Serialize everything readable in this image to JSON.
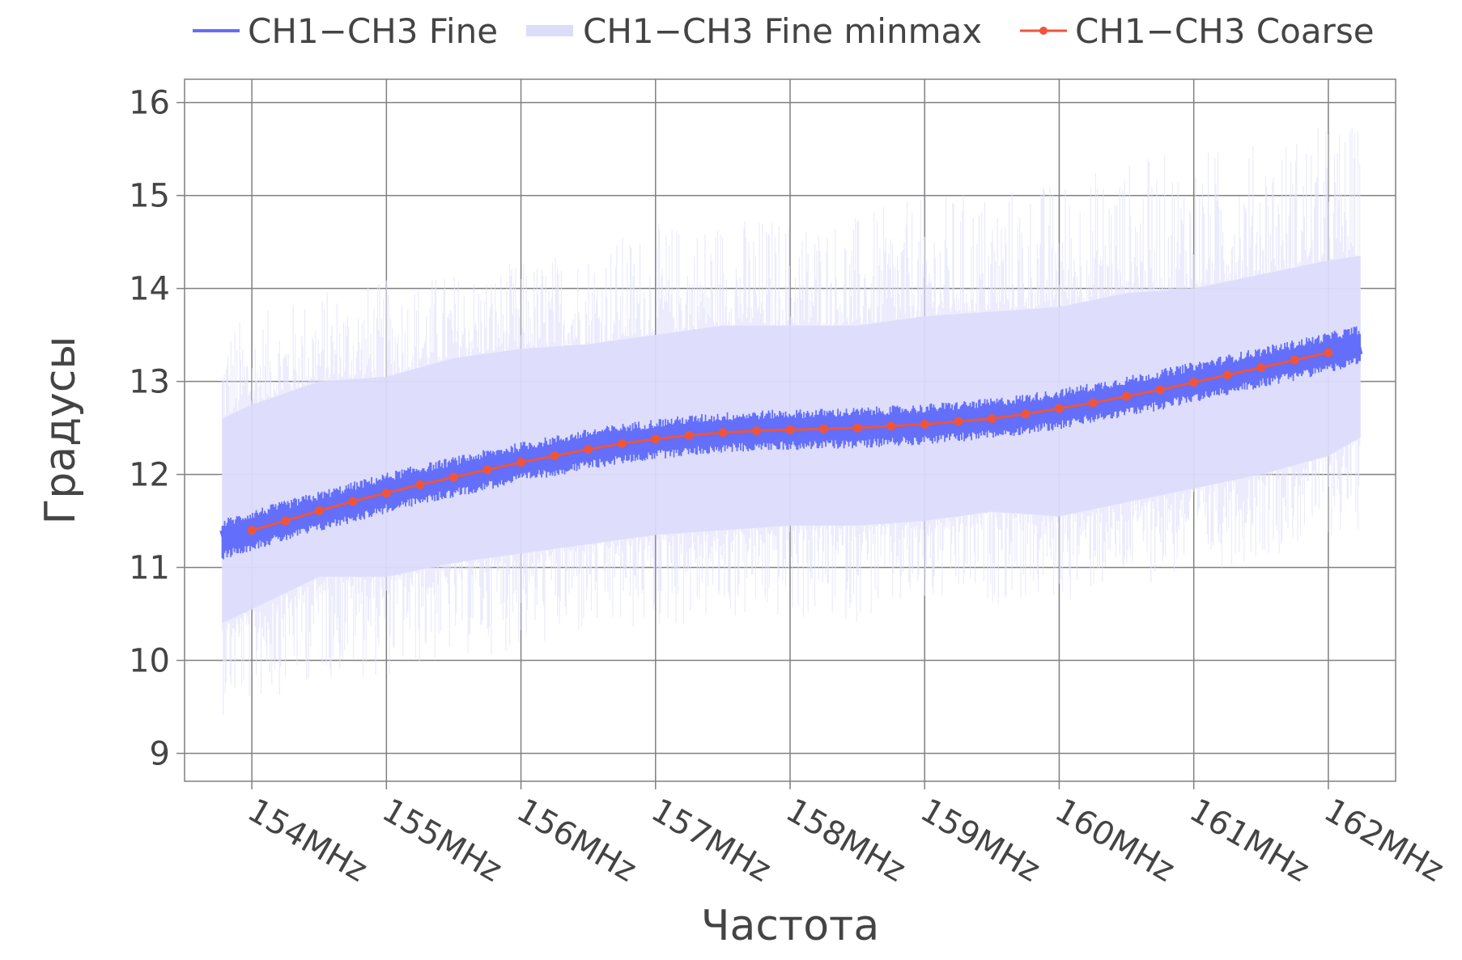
{
  "chart_data": {
    "type": "line",
    "xlabel": "Частота",
    "ylabel": "Градусы",
    "xlim": [
      153.5,
      162.5
    ],
    "ylim": [
      8.7,
      16.25
    ],
    "x_ticks": [
      154,
      155,
      156,
      157,
      158,
      159,
      160,
      161,
      162
    ],
    "x_tick_labels": [
      "154MHz",
      "155MHz",
      "156MHz",
      "157MHz",
      "158MHz",
      "159MHz",
      "160MHz",
      "161MHz",
      "162MHz"
    ],
    "y_ticks": [
      9,
      10,
      11,
      12,
      13,
      14,
      15,
      16
    ],
    "y_tick_labels": [
      "9",
      "10",
      "11",
      "12",
      "13",
      "14",
      "15",
      "16"
    ],
    "grid": true,
    "legend_position": "top",
    "series": [
      {
        "name": "CH1−CH3 Fine",
        "color": "#636efa",
        "x": [
          153.78,
          154,
          154.25,
          154.5,
          154.75,
          155,
          155.25,
          155.5,
          155.75,
          156,
          156.25,
          156.5,
          156.75,
          157,
          157.25,
          157.5,
          157.75,
          158,
          158.25,
          158.5,
          158.75,
          159,
          159.25,
          159.5,
          159.75,
          160,
          160.25,
          160.5,
          160.75,
          161,
          161.25,
          161.5,
          161.75,
          162,
          162.24
        ],
        "y": [
          11.3,
          11.4,
          11.5,
          11.6,
          11.7,
          11.8,
          11.89,
          11.97,
          12.05,
          12.13,
          12.2,
          12.27,
          12.33,
          12.38,
          12.42,
          12.45,
          12.47,
          12.48,
          12.49,
          12.5,
          12.52,
          12.54,
          12.57,
          12.6,
          12.65,
          12.7,
          12.77,
          12.84,
          12.91,
          12.99,
          13.07,
          13.15,
          13.23,
          13.31,
          13.39
        ],
        "noise_band": 0.22
      },
      {
        "name": "CH1−CH3 Fine minmax",
        "color": "#dcdcfb",
        "x": [
          153.78,
          154,
          154.5,
          155,
          155.5,
          156,
          156.5,
          157,
          157.5,
          158,
          158.5,
          159,
          159.5,
          160,
          160.5,
          161,
          161.5,
          162,
          162.24
        ],
        "upper": [
          12.6,
          12.75,
          13.0,
          13.05,
          13.25,
          13.35,
          13.4,
          13.5,
          13.6,
          13.6,
          13.6,
          13.7,
          13.75,
          13.8,
          13.95,
          14.0,
          14.15,
          14.3,
          14.35
        ],
        "lower": [
          10.4,
          10.55,
          10.9,
          10.9,
          11.05,
          11.15,
          11.25,
          11.35,
          11.4,
          11.45,
          11.45,
          11.5,
          11.6,
          11.55,
          11.7,
          11.85,
          12.0,
          12.2,
          12.4
        ],
        "spike_upper": [
          13.7,
          13.7,
          14.0,
          14.1,
          14.2,
          14.3,
          14.5,
          14.7,
          14.8,
          14.8,
          14.8,
          15.0,
          15.1,
          15.2,
          15.4,
          15.5,
          15.6,
          15.8,
          15.8
        ],
        "spike_lower": [
          9.4,
          9.5,
          9.8,
          9.8,
          10.0,
          10.1,
          10.2,
          10.3,
          10.4,
          10.4,
          10.4,
          10.5,
          10.6,
          10.6,
          10.8,
          10.9,
          11.1,
          11.3,
          11.4
        ]
      },
      {
        "name": "CH1−CH3 Coarse",
        "color": "#ef553b",
        "x": [
          154,
          154.25,
          154.5,
          154.75,
          155,
          155.25,
          155.5,
          155.75,
          156,
          156.25,
          156.5,
          156.75,
          157,
          157.25,
          157.5,
          157.75,
          158,
          158.25,
          158.5,
          158.75,
          159,
          159.25,
          159.5,
          159.75,
          160,
          160.25,
          160.5,
          160.75,
          161,
          161.25,
          161.5,
          161.75,
          162
        ],
        "y": [
          11.4,
          11.5,
          11.61,
          11.71,
          11.8,
          11.89,
          11.97,
          12.05,
          12.13,
          12.2,
          12.27,
          12.33,
          12.38,
          12.42,
          12.45,
          12.47,
          12.48,
          12.49,
          12.5,
          12.52,
          12.54,
          12.57,
          12.6,
          12.65,
          12.71,
          12.77,
          12.84,
          12.91,
          12.99,
          13.07,
          13.15,
          13.23,
          13.31
        ]
      }
    ]
  }
}
